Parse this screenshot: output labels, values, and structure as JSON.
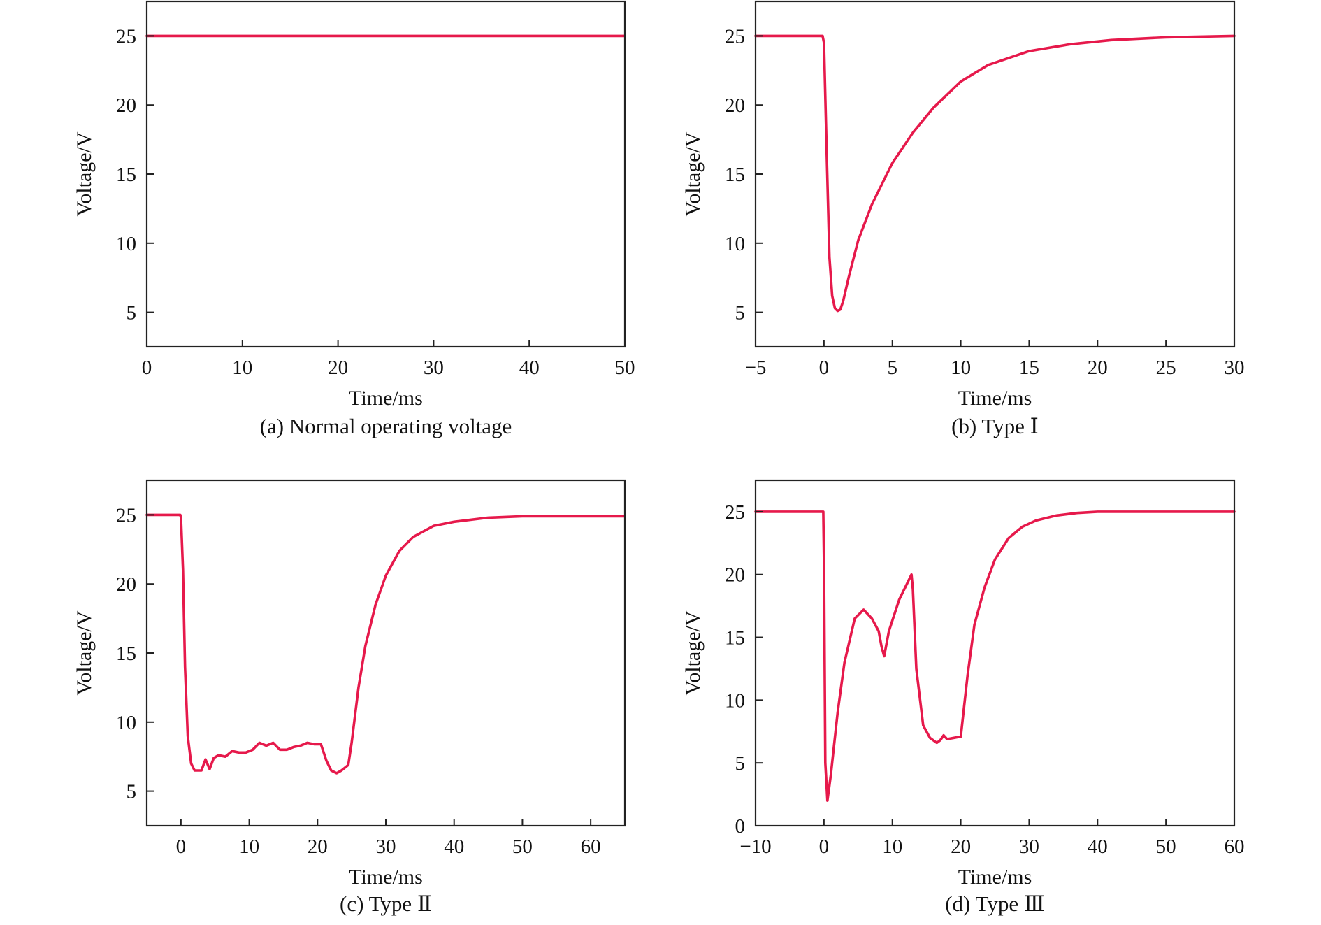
{
  "chart_data": [
    {
      "type": "line",
      "caption": "(a) Normal operating voltage",
      "xlabel": "Time/ms",
      "ylabel": "Voltage/V",
      "xlim": [
        0,
        50
      ],
      "ylim": [
        2.5,
        27.5
      ],
      "xticks": [
        0,
        10,
        20,
        30,
        40,
        50
      ],
      "yticks": [
        5,
        10,
        15,
        20,
        25
      ],
      "xtick_labels": [
        "0",
        "10",
        "20",
        "30",
        "40",
        "50"
      ],
      "ytick_labels": [
        "5",
        "10",
        "15",
        "20",
        "25"
      ],
      "series": [
        {
          "color": "#e6194b",
          "x": [
            0,
            50
          ],
          "y": [
            25,
            25
          ]
        }
      ]
    },
    {
      "type": "line",
      "caption": "(b) Type Ⅰ",
      "xlabel": "Time/ms",
      "ylabel": "Voltage/V",
      "xlim": [
        -5,
        30
      ],
      "ylim": [
        2.5,
        27.5
      ],
      "xticks": [
        -5,
        0,
        5,
        10,
        15,
        20,
        25,
        30
      ],
      "yticks": [
        5,
        10,
        15,
        20,
        25
      ],
      "xtick_labels": [
        "−5",
        "0",
        "5",
        "10",
        "15",
        "20",
        "25",
        "30"
      ],
      "ytick_labels": [
        "5",
        "10",
        "15",
        "20",
        "25"
      ],
      "series": [
        {
          "color": "#e6194b",
          "x": [
            -5,
            -0.1,
            0.0,
            0.2,
            0.4,
            0.6,
            0.8,
            1.0,
            1.2,
            1.4,
            1.8,
            2.5,
            3.5,
            5,
            6.5,
            8,
            10,
            12,
            15,
            18,
            21,
            25,
            30
          ],
          "y": [
            25,
            25,
            24.5,
            16.5,
            9,
            6.2,
            5.3,
            5.1,
            5.2,
            5.8,
            7.5,
            10.2,
            12.8,
            15.8,
            18,
            19.8,
            21.7,
            22.9,
            23.9,
            24.4,
            24.7,
            24.9,
            25
          ]
        }
      ]
    },
    {
      "type": "line",
      "caption": "(c) Type Ⅱ",
      "xlabel": "Time/ms",
      "ylabel": "Voltage/V",
      "xlim": [
        -5,
        65
      ],
      "ylim": [
        2.5,
        27.5
      ],
      "xticks": [
        0,
        10,
        20,
        30,
        40,
        50,
        60
      ],
      "yticks": [
        5,
        10,
        15,
        20,
        25
      ],
      "xtick_labels": [
        "0",
        "10",
        "20",
        "30",
        "40",
        "50",
        "60"
      ],
      "ytick_labels": [
        "5",
        "10",
        "15",
        "20",
        "25"
      ],
      "series": [
        {
          "color": "#e6194b",
          "x": [
            -5,
            -0.1,
            0.0,
            0.3,
            0.6,
            1.0,
            1.5,
            2.0,
            3.0,
            3.6,
            4.2,
            4.8,
            5.5,
            6.5,
            7.5,
            8.5,
            9.5,
            10.5,
            11.5,
            12.5,
            13.5,
            14.5,
            15.5,
            16.5,
            17.5,
            18.5,
            19.5,
            20.5,
            21.3,
            22.0,
            22.8,
            23.5,
            24.5,
            25.0,
            26.0,
            27.0,
            28.5,
            30.0,
            32.0,
            34.0,
            37.0,
            40.0,
            45.0,
            50.0,
            55.0,
            60.0,
            65.0
          ],
          "y": [
            25,
            25,
            24.8,
            21,
            14,
            9,
            7,
            6.5,
            6.5,
            7.3,
            6.6,
            7.4,
            7.6,
            7.5,
            7.9,
            7.8,
            7.8,
            8.0,
            8.5,
            8.3,
            8.5,
            8.0,
            8.0,
            8.2,
            8.3,
            8.5,
            8.4,
            8.4,
            7.2,
            6.5,
            6.3,
            6.5,
            6.9,
            8.5,
            12.5,
            15.5,
            18.5,
            20.6,
            22.4,
            23.4,
            24.2,
            24.5,
            24.8,
            24.9,
            24.9,
            24.9,
            24.9
          ]
        }
      ]
    },
    {
      "type": "line",
      "caption": "(d) Type Ⅲ",
      "xlabel": "Time/ms",
      "ylabel": "Voltage/V",
      "xlim": [
        -10,
        60
      ],
      "ylim": [
        0,
        27.5
      ],
      "xticks": [
        -10,
        0,
        10,
        20,
        30,
        40,
        50,
        60
      ],
      "yticks": [
        0,
        5,
        10,
        15,
        20,
        25
      ],
      "xtick_labels": [
        "−10",
        "0",
        "10",
        "20",
        "30",
        "40",
        "50",
        "60"
      ],
      "ytick_labels": [
        "0",
        "5",
        "10",
        "15",
        "20",
        "25"
      ],
      "series": [
        {
          "color": "#e6194b",
          "x": [
            -10,
            -0.1,
            0.0,
            0.2,
            0.5,
            1.0,
            2.0,
            3.0,
            4.5,
            5.8,
            7.0,
            8.0,
            8.4,
            8.8,
            9.5,
            11.0,
            12.8,
            13.0,
            13.5,
            14.5,
            15.5,
            16.5,
            17.0,
            17.5,
            18.0,
            19.0,
            20.0,
            21.0,
            22.0,
            23.5,
            25.0,
            27.0,
            29.0,
            31.0,
            34.0,
            37.0,
            40.0,
            45.0,
            50.0,
            55.0,
            60.0
          ],
          "y": [
            25,
            25,
            21,
            5,
            2.0,
            4.0,
            9,
            13,
            16.5,
            17.2,
            16.5,
            15.5,
            14.3,
            13.5,
            15.5,
            18,
            20,
            18.8,
            12.5,
            8,
            7,
            6.6,
            6.8,
            7.2,
            6.9,
            7.0,
            7.1,
            12,
            16,
            19,
            21.2,
            22.9,
            23.8,
            24.3,
            24.7,
            24.9,
            25,
            25,
            25,
            25,
            25
          ]
        }
      ]
    }
  ]
}
